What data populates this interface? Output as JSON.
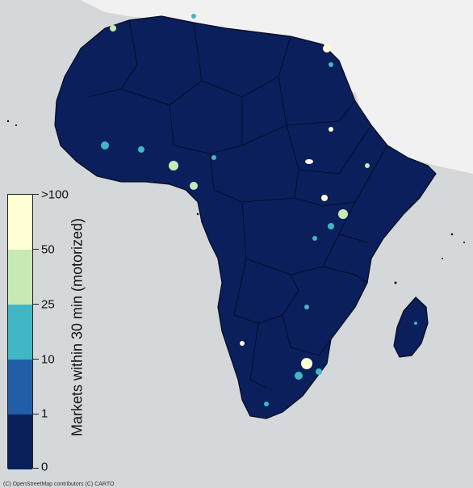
{
  "map": {
    "colors": {
      "background": "#d5d8db",
      "land_other": "#f1f1f1",
      "africa_fill": "#0a1f5c",
      "border": "#050a1a"
    }
  },
  "legend": {
    "title": "Markets within 30 min (motorized)",
    "ticks": [
      {
        "label": ">100"
      },
      {
        "label": "50"
      },
      {
        "label": "25"
      },
      {
        "label": "10"
      },
      {
        "label": "1"
      },
      {
        "label": "0"
      }
    ],
    "bins": [
      {
        "range": "0-1",
        "color": "#08205a"
      },
      {
        "range": "1-10",
        "color": "#225ea8"
      },
      {
        "range": "10-25",
        "color": "#41b6c4"
      },
      {
        "range": "25-50",
        "color": "#c7e9b4"
      },
      {
        "range": "50-100+",
        "color": "#ffffd4"
      }
    ]
  },
  "attribution": "(C) OpenStreetMap contributors (C) CARTO"
}
